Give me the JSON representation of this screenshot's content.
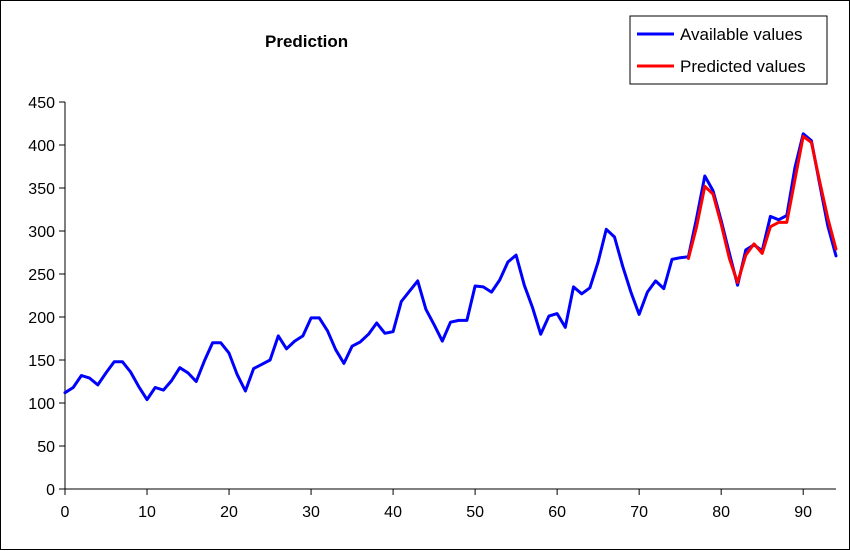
{
  "chart_data": {
    "type": "line",
    "title": "Prediction",
    "xlabel": "",
    "ylabel": "",
    "xlim": [
      0,
      94
    ],
    "ylim": [
      0,
      450
    ],
    "xticks": [
      0,
      10,
      20,
      30,
      40,
      50,
      60,
      70,
      80,
      90
    ],
    "yticks": [
      0,
      50,
      100,
      150,
      200,
      250,
      300,
      350,
      400,
      450
    ],
    "grid": false,
    "legend_position": "top-right",
    "series": [
      {
        "name": "Available values",
        "color": "#0000ff",
        "x": [
          0,
          1,
          2,
          3,
          4,
          5,
          6,
          7,
          8,
          9,
          10,
          11,
          12,
          13,
          14,
          15,
          16,
          17,
          18,
          19,
          20,
          21,
          22,
          23,
          24,
          25,
          26,
          27,
          28,
          29,
          30,
          31,
          32,
          33,
          34,
          35,
          36,
          37,
          38,
          39,
          40,
          41,
          42,
          43,
          44,
          45,
          46,
          47,
          48,
          49,
          50,
          51,
          52,
          53,
          54,
          55,
          56,
          57,
          58,
          59,
          60,
          61,
          62,
          63,
          64,
          65,
          66,
          67,
          68,
          69,
          70,
          71,
          72,
          73,
          74,
          75,
          76,
          77,
          78,
          79,
          80,
          81,
          82,
          83,
          84,
          85,
          86,
          87,
          88,
          89,
          90,
          91,
          92,
          93,
          94
        ],
        "values": [
          112,
          118,
          132,
          129,
          121,
          135,
          148,
          148,
          136,
          119,
          104,
          118,
          115,
          126,
          141,
          135,
          125,
          149,
          170,
          170,
          158,
          133,
          114,
          140,
          145,
          150,
          178,
          163,
          172,
          178,
          199,
          199,
          184,
          162,
          146,
          166,
          171,
          180,
          193,
          181,
          183,
          218,
          230,
          242,
          209,
          191,
          172,
          194,
          196,
          196,
          236,
          235,
          229,
          243,
          264,
          272,
          237,
          211,
          180,
          201,
          204,
          188,
          235,
          227,
          234,
          264,
          302,
          293,
          259,
          229,
          203,
          229,
          242,
          233,
          267,
          269,
          270,
          315,
          364,
          347,
          312,
          274,
          237,
          278,
          284,
          277,
          317,
          313,
          318,
          374,
          413,
          405,
          355,
          306,
          271
        ]
      },
      {
        "name": "Predicted values",
        "color": "#ff0000",
        "x": [
          76,
          77,
          78,
          79,
          80,
          81,
          82,
          83,
          84,
          85,
          86,
          87,
          88,
          89,
          90,
          91,
          92,
          93,
          94
        ],
        "values": [
          268,
          305,
          352,
          343,
          308,
          268,
          240,
          272,
          285,
          274,
          305,
          310,
          310,
          360,
          410,
          403,
          358,
          315,
          279
        ]
      }
    ]
  }
}
